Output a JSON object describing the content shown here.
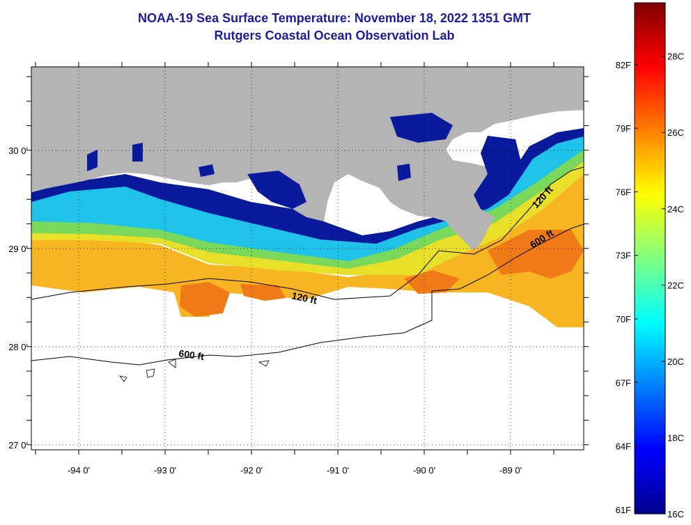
{
  "title": {
    "line1": "NOAA-19 Sea Surface Temperature:  November 18, 2022 1351 GMT",
    "line2": "Rutgers Coastal Ocean Observation Lab"
  },
  "map": {
    "lon_range": [
      -94.55,
      -88.15
    ],
    "lat_range": [
      26.95,
      30.85
    ],
    "lat_ticks": [
      {
        "value": 30,
        "label": "30 0'"
      },
      {
        "value": 29,
        "label": "29 0'"
      },
      {
        "value": 28,
        "label": "28 0'"
      },
      {
        "value": 27,
        "label": "27 0'"
      }
    ],
    "lon_ticks": [
      {
        "value": -94,
        "label": "-94 0'"
      },
      {
        "value": -93,
        "label": "-93 0'"
      },
      {
        "value": -92,
        "label": "-92 0'"
      },
      {
        "value": -91,
        "label": "-91 0'"
      },
      {
        "value": -90,
        "label": "-90 0'"
      },
      {
        "value": -89,
        "label": "-89 0'"
      }
    ],
    "contour_labels": {
      "c120_west": "120 ft",
      "c120_east": "120 ft",
      "c600_west": "600 ft",
      "c600_east": "600 ft"
    },
    "colors": {
      "land": "#b4b4b4",
      "cloud": "#ffffff",
      "frame": "#000000"
    }
  },
  "colorbar": {
    "celsius_labels": [
      "28C",
      "26C",
      "24C",
      "22C",
      "20C",
      "18C",
      "16C"
    ],
    "fahrenheit_labels": [
      "82F",
      "79F",
      "76F",
      "73F",
      "70F",
      "67F",
      "64F",
      "61F"
    ],
    "range_c": [
      16,
      29.4
    ],
    "colormap": "jet"
  }
}
